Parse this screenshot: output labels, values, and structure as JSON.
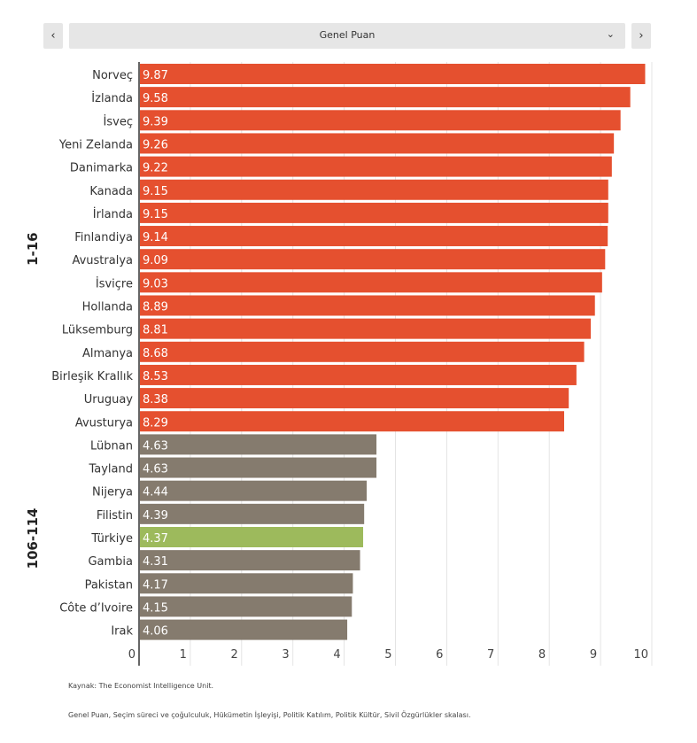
{
  "controls": {
    "prev_label": "‹",
    "next_label": "›",
    "selected_metric": "Genel Puan",
    "dropdown_icon": "⌄"
  },
  "chart_data": {
    "type": "bar",
    "orientation": "horizontal",
    "title": "Genel Puan",
    "xlabel": "",
    "ylabel": "",
    "xlim": [
      0,
      10
    ],
    "x_ticks": [
      "0",
      "1",
      "2",
      "3",
      "4",
      "5",
      "6",
      "7",
      "8",
      "9",
      "10"
    ],
    "grid": true,
    "colors": {
      "top": "#e5502f",
      "bottom": "#857b6e",
      "highlight": "#9dba5c"
    },
    "groups": [
      {
        "label": "1-16",
        "start": 0,
        "end": 15
      },
      {
        "label": "106-114",
        "start": 16,
        "end": 24
      }
    ],
    "categories": [
      "Norveç",
      "İzlanda",
      "İsveç",
      "Yeni Zelanda",
      "Danimarka",
      "Kanada",
      "İrlanda",
      "Finlandiya",
      "Avustralya",
      "İsviçre",
      "Hollanda",
      "Lüksemburg",
      "Almanya",
      "Birleşik Krallık",
      "Uruguay",
      "Avusturya",
      "Lübnan",
      "Tayland",
      "Nijerya",
      "Filistin",
      "Türkiye",
      "Gambia",
      "Pakistan",
      "Côte d’Ivoire",
      "Irak"
    ],
    "values": [
      9.87,
      9.58,
      9.39,
      9.26,
      9.22,
      9.15,
      9.15,
      9.14,
      9.09,
      9.03,
      8.89,
      8.81,
      8.68,
      8.53,
      8.38,
      8.29,
      4.63,
      4.63,
      4.44,
      4.39,
      4.37,
      4.31,
      4.17,
      4.15,
      4.06
    ],
    "value_labels": [
      "9.87",
      "9.58",
      "9.39",
      "9.26",
      "9.22",
      "9.15",
      "9.15",
      "9.14",
      "9.09",
      "9.03",
      "8.89",
      "8.81",
      "8.68",
      "8.53",
      "8.38",
      "8.29",
      "4.63",
      "4.63",
      "4.44",
      "4.39",
      "4.37",
      "4.31",
      "4.17",
      "4.15",
      "4.06"
    ],
    "highlight": "Türkiye"
  },
  "footer": {
    "source": "Kaynak: The Economist Intelligence Unit.",
    "note": "Genel Puan, Seçim süreci ve çoğulculuk, Hükümetin İşleyişi, Politik Katılım, Politik Kültür, Sivil Özgürlükler skalası."
  }
}
